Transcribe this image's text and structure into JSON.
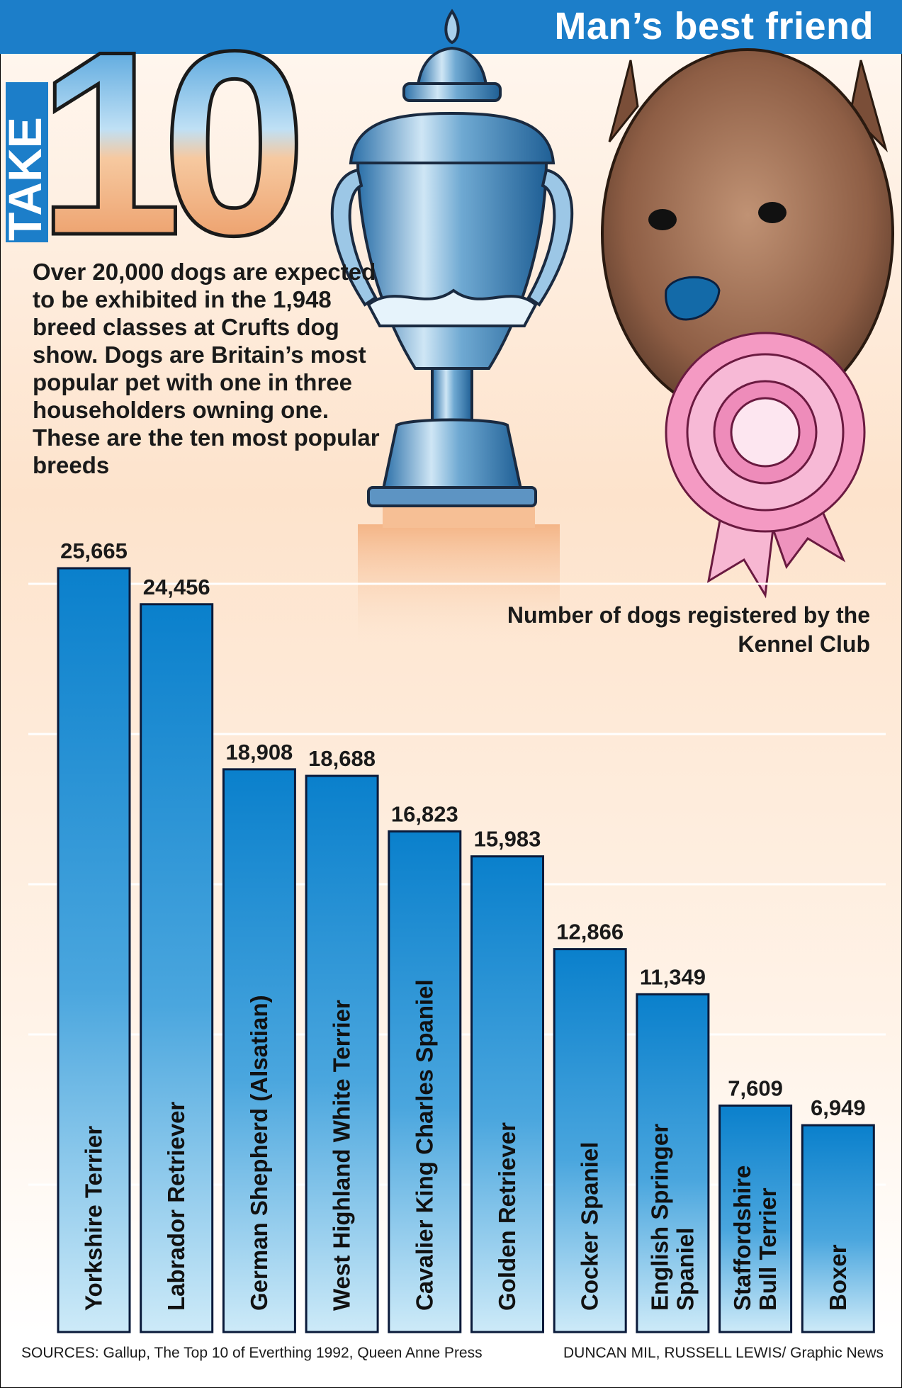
{
  "header": {
    "logo_word": "TAKE",
    "logo_number": "10",
    "title": "Man’s best friend"
  },
  "intro": {
    "text": "Over 20,000 dogs are expected to be exhibited in the 1,948 breed classes at Crufts dog show. Dogs are Britain’s most popular pet with one in three householders owning one. These are the ten most popular breeds"
  },
  "chart_data": {
    "type": "bar",
    "subtitle": "Number of dogs registered by the Kennel Club",
    "categories": [
      "Yorkshire Terrier",
      "Labrador Retriever",
      "German Shepherd (Alsatian)",
      "West Highland White Terrier",
      "Cavalier King Charles Spaniel",
      "Golden Retriever",
      "Cocker Spaniel",
      "English Springer Spaniel",
      "Staffordshire Bull Terrier",
      "Boxer"
    ],
    "category_lines": [
      [
        "Yorkshire Terrier"
      ],
      [
        "Labrador Retriever"
      ],
      [
        "German Shepherd (Alsatian)"
      ],
      [
        "West Highland White Terrier"
      ],
      [
        "Cavalier King Charles Spaniel"
      ],
      [
        "Golden Retriever"
      ],
      [
        "Cocker Spaniel"
      ],
      [
        "English Springer",
        "Spaniel"
      ],
      [
        "Staffordshire",
        "Bull Terrier"
      ],
      [
        "Boxer"
      ]
    ],
    "values": [
      25665,
      24456,
      18908,
      18688,
      16823,
      15983,
      12866,
      11349,
      7609,
      6949
    ],
    "value_labels": [
      "25,665",
      "24,456",
      "18,908",
      "18,688",
      "16,823",
      "15,983",
      "12,866",
      "11,349",
      "7,609",
      "6,949"
    ],
    "ylim": [
      0,
      25665
    ],
    "grid": true,
    "colors": {
      "bar_top": "#0a80cc",
      "bar_bottom": "#cdeaf8",
      "bar_edge": "#0a1a3a"
    }
  },
  "illustration": {
    "trophy": "trophy-cup",
    "dog": "yorkshire-terrier-head",
    "rosette": "pink-rosette"
  },
  "footer": {
    "sources": "SOURCES: Gallup, The Top 10 of Everthing 1992, Queen Anne Press",
    "credit": "DUNCAN MIL, RUSSELL LEWIS/ Graphic News"
  }
}
